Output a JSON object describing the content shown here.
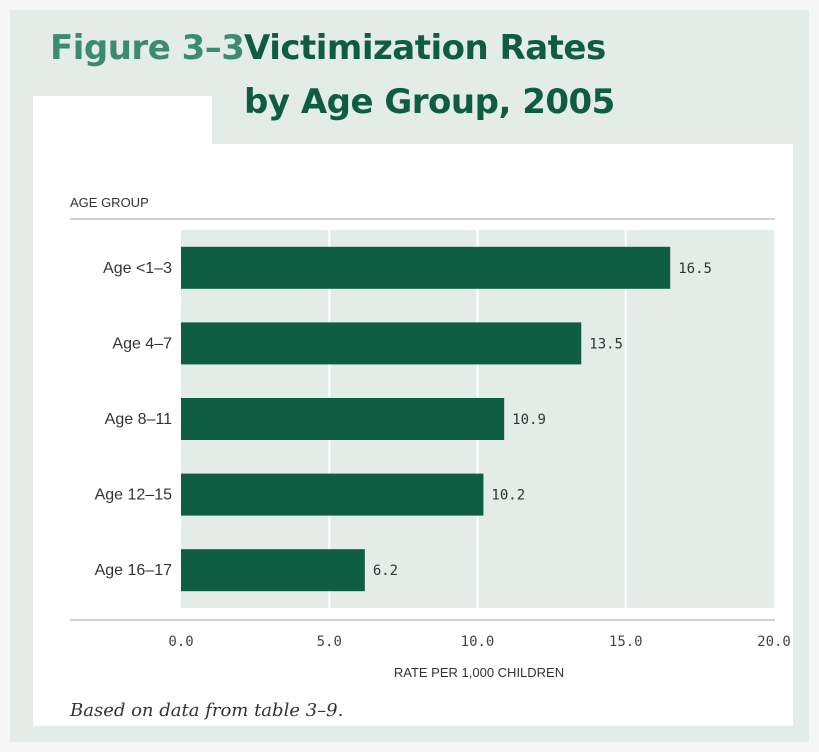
{
  "figure": {
    "label": "Figure 3–3",
    "title_line1": "Victimization Rates",
    "title_line2": "by Age Group, 2005",
    "caption": "Based on data from table 3–9."
  },
  "colors": {
    "bar": "#0f5e44",
    "plot_background": "#e4ece8",
    "title_label": "#3d8a73",
    "title": "#0e5d43"
  },
  "chart_data": {
    "type": "bar",
    "orientation": "horizontal",
    "title": "Victimization Rates by Age Group, 2005",
    "ylabel": "AGE GROUP",
    "xlabel": "RATE PER 1,000 CHILDREN",
    "categories": [
      "Age <1–3",
      "Age 4–7",
      "Age 8–11",
      "Age 12–15",
      "Age 16–17"
    ],
    "values": [
      16.5,
      13.5,
      10.9,
      10.2,
      6.2
    ],
    "value_labels": [
      "16.5",
      "13.5",
      "10.9",
      "10.2",
      "6.2"
    ],
    "xlim": [
      0,
      20
    ],
    "ticks": [
      "0.0",
      "5.0",
      "10.0",
      "15.0",
      "20.0"
    ],
    "grid": true,
    "legend": "none"
  }
}
